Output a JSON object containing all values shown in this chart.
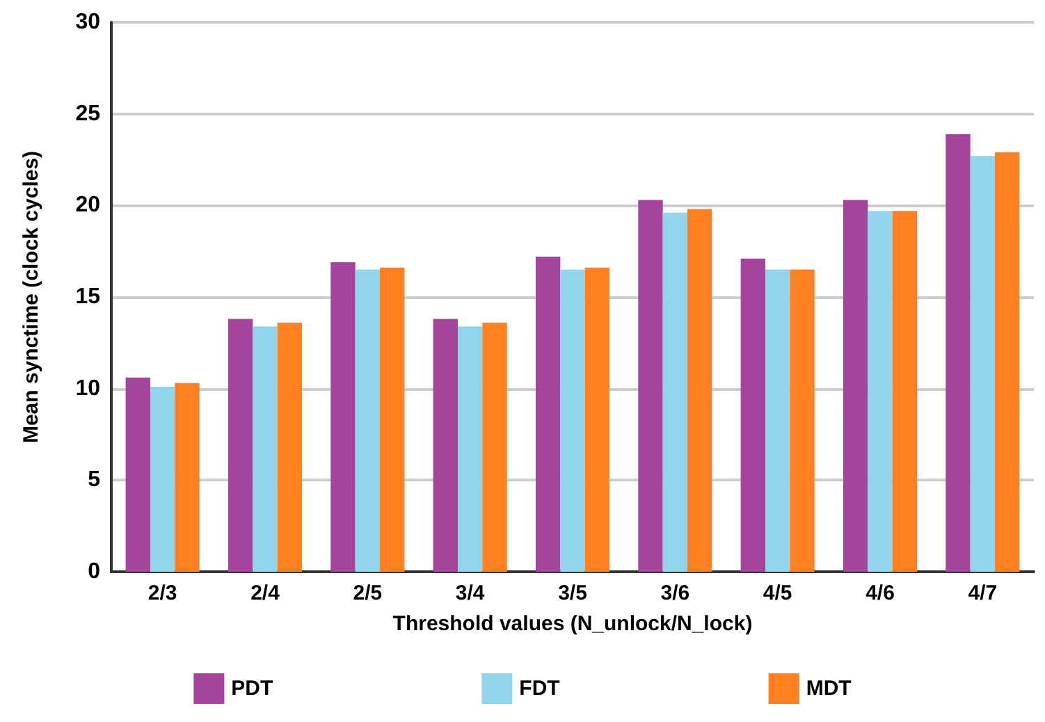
{
  "chart_data": {
    "type": "bar",
    "xlabel": "Threshold values (N_unlock/N_lock)",
    "ylabel": "Mean synctime (clock cycles)",
    "categories": [
      "2/3",
      "2/4",
      "2/5",
      "3/4",
      "3/5",
      "3/6",
      "4/5",
      "4/6",
      "4/7"
    ],
    "series": [
      {
        "name": "PDT",
        "color": "#a4449c",
        "values": [
          10.6,
          13.8,
          16.9,
          13.8,
          17.2,
          20.3,
          17.1,
          20.3,
          23.9
        ]
      },
      {
        "name": "FDT",
        "color": "#92d5ea",
        "values": [
          10.1,
          13.4,
          16.5,
          13.4,
          16.5,
          19.6,
          16.5,
          19.7,
          22.7
        ]
      },
      {
        "name": "MDT",
        "color": "#ff8020",
        "values": [
          10.3,
          13.6,
          16.6,
          13.6,
          16.6,
          19.8,
          16.5,
          19.7,
          22.9
        ]
      }
    ],
    "ylim": [
      0,
      30
    ],
    "yticks": [
      0,
      5,
      10,
      15,
      20,
      25,
      30
    ],
    "grid": "y",
    "legend": "bottom"
  }
}
